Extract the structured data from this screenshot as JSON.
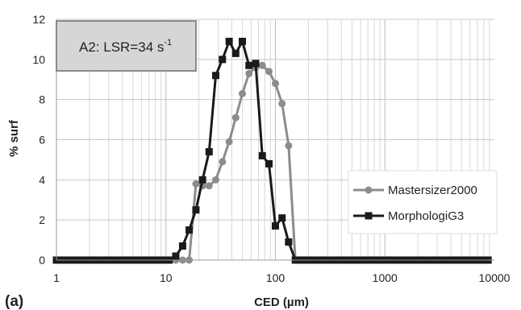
{
  "chart_data": {
    "type": "line",
    "xscale": "log",
    "xlim": [
      1,
      10000
    ],
    "ylim": [
      0,
      12
    ],
    "xticks": [
      1,
      10,
      100,
      1000,
      10000
    ],
    "xtick_labels": [
      "1",
      "10",
      "100",
      "1000",
      "10000"
    ],
    "yticks": [
      0,
      2,
      4,
      6,
      8,
      10,
      12
    ],
    "ytick_labels": [
      "0",
      "2",
      "4",
      "6",
      "8",
      "10",
      "12"
    ],
    "xlabel": "CED (µm)",
    "ylabel": "% surf",
    "panel_label": "(a)",
    "annotation": {
      "main": "A2: LSR=34 s",
      "superscript": "-1"
    },
    "grid": {
      "x_minor_log": true,
      "y_major": true
    },
    "legend_position": "right",
    "series": [
      {
        "name": "Mastersizer2000",
        "color": "#8c8c8c",
        "marker": "circle",
        "points": [
          [
            1,
            0
          ],
          [
            1.15,
            0
          ],
          [
            1.32,
            0
          ],
          [
            1.52,
            0
          ],
          [
            1.75,
            0
          ],
          [
            2.01,
            0
          ],
          [
            2.31,
            0
          ],
          [
            2.66,
            0
          ],
          [
            3.05,
            0
          ],
          [
            3.51,
            0
          ],
          [
            4.04,
            0
          ],
          [
            4.64,
            0
          ],
          [
            5.34,
            0
          ],
          [
            6.14,
            0
          ],
          [
            7.06,
            0
          ],
          [
            8.12,
            0
          ],
          [
            9.33,
            0
          ],
          [
            10.7,
            0
          ],
          [
            12.3,
            0
          ],
          [
            14.2,
            0
          ],
          [
            16.3,
            0
          ],
          [
            18.8,
            3.8
          ],
          [
            21.6,
            3.7
          ],
          [
            24.8,
            3.7
          ],
          [
            28.5,
            4.0
          ],
          [
            32.8,
            4.9
          ],
          [
            37.8,
            5.9
          ],
          [
            43.4,
            7.1
          ],
          [
            49.9,
            8.3
          ],
          [
            57.4,
            9.3
          ],
          [
            66,
            9.6
          ],
          [
            75.9,
            9.7
          ],
          [
            87.3,
            9.4
          ],
          [
            100,
            8.8
          ],
          [
            115,
            7.8
          ],
          [
            132,
            5.7
          ],
          [
            152,
            0
          ],
          [
            175,
            0
          ],
          [
            201,
            0
          ],
          [
            231,
            0
          ],
          [
            266,
            0
          ],
          [
            306,
            0
          ],
          [
            352,
            0
          ],
          [
            405,
            0
          ],
          [
            465,
            0
          ],
          [
            535,
            0
          ],
          [
            615,
            0
          ],
          [
            708,
            0
          ],
          [
            814,
            0
          ],
          [
            936,
            0
          ],
          [
            1076,
            0
          ],
          [
            1238,
            0
          ],
          [
            1424,
            0
          ],
          [
            1637,
            0
          ],
          [
            1882,
            0
          ],
          [
            2165,
            0
          ],
          [
            2490,
            0
          ],
          [
            2863,
            0
          ],
          [
            3293,
            0
          ],
          [
            3787,
            0
          ],
          [
            4355,
            0
          ],
          [
            5008,
            0
          ],
          [
            5759,
            0
          ],
          [
            6623,
            0
          ],
          [
            7617,
            0
          ],
          [
            8759,
            0
          ]
        ]
      },
      {
        "name": "MorphologiG3",
        "color": "#1a1a1a",
        "marker": "square",
        "points": [
          [
            1,
            0
          ],
          [
            1.15,
            0
          ],
          [
            1.32,
            0
          ],
          [
            1.52,
            0
          ],
          [
            1.75,
            0
          ],
          [
            2.01,
            0
          ],
          [
            2.31,
            0
          ],
          [
            2.66,
            0
          ],
          [
            3.05,
            0
          ],
          [
            3.51,
            0
          ],
          [
            4.04,
            0
          ],
          [
            4.64,
            0
          ],
          [
            5.34,
            0
          ],
          [
            6.14,
            0
          ],
          [
            7.06,
            0
          ],
          [
            8.12,
            0
          ],
          [
            9.33,
            0
          ],
          [
            10.7,
            0
          ],
          [
            12.3,
            0.2
          ],
          [
            14.2,
            0.7
          ],
          [
            16.3,
            1.5
          ],
          [
            18.8,
            2.5
          ],
          [
            21.6,
            4.0
          ],
          [
            24.8,
            5.4
          ],
          [
            28.5,
            9.2
          ],
          [
            32.8,
            10.0
          ],
          [
            37.8,
            10.9
          ],
          [
            43.4,
            10.3
          ],
          [
            49.9,
            10.9
          ],
          [
            57.4,
            9.7
          ],
          [
            66,
            9.8
          ],
          [
            75.9,
            5.2
          ],
          [
            87.3,
            4.8
          ],
          [
            100,
            1.7
          ],
          [
            115,
            2.1
          ],
          [
            132,
            0.9
          ],
          [
            152,
            0
          ],
          [
            175,
            0
          ],
          [
            201,
            0
          ],
          [
            231,
            0
          ],
          [
            266,
            0
          ],
          [
            306,
            0
          ],
          [
            352,
            0
          ],
          [
            405,
            0
          ],
          [
            465,
            0
          ],
          [
            535,
            0
          ],
          [
            615,
            0
          ],
          [
            708,
            0
          ],
          [
            814,
            0
          ],
          [
            936,
            0
          ],
          [
            1076,
            0
          ],
          [
            1238,
            0
          ],
          [
            1424,
            0
          ],
          [
            1637,
            0
          ],
          [
            1882,
            0
          ],
          [
            2165,
            0
          ],
          [
            2490,
            0
          ],
          [
            2863,
            0
          ],
          [
            3293,
            0
          ],
          [
            3787,
            0
          ],
          [
            4355,
            0
          ],
          [
            5008,
            0
          ],
          [
            5759,
            0
          ],
          [
            6623,
            0
          ],
          [
            7617,
            0
          ],
          [
            8759,
            0
          ]
        ]
      }
    ]
  }
}
